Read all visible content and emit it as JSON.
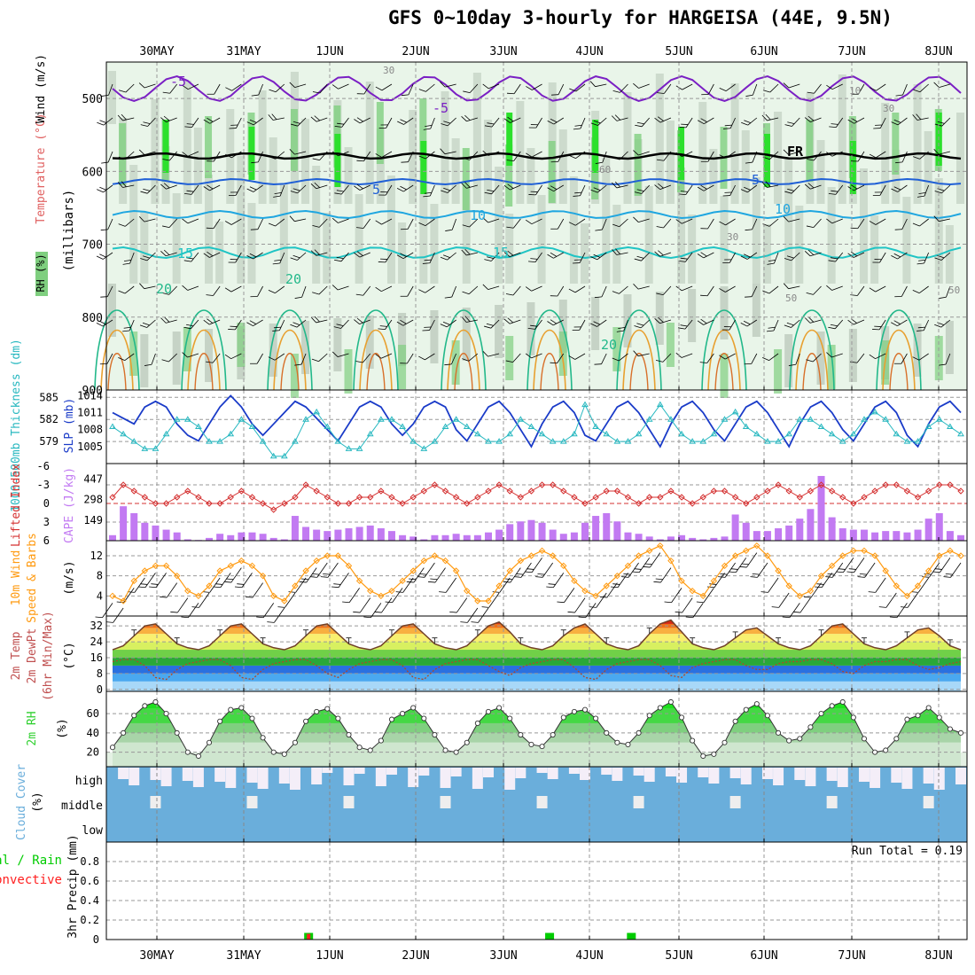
{
  "title": "GFS 0~10day 3-hourly for HARGEISA (44E, 9.5N)",
  "dates": [
    "30MAY",
    "31MAY",
    "1JUN",
    "2JUN",
    "3JUN",
    "4JUN",
    "5JUN",
    "6JUN",
    "7JUN",
    "8JUN"
  ],
  "panel_labels": {
    "p1_rh": "RH (%)",
    "p1_temp": "Temperature (°C)",
    "p1_wind": "Wind (m/s)",
    "p1_mb": "(millibars)",
    "p2_thick": "1000-500mb Thickness (dm)",
    "p2_slp": "SLP (mb)",
    "p3_li": "Lifted Index",
    "p3_cape": "CAPE (J/kg)",
    "p4_a": "10m Wind",
    "p4_b": "Speed & Barbs",
    "p4_units": "(m/s)",
    "p5_a": "2m Temp",
    "p5_b": "2m DewPt",
    "p5_c": "(6hr Min/Max)",
    "p5_units": "(°C)",
    "p6_a": "2m RH",
    "p6_units": "(%)",
    "p7_a": "Cloud Cover",
    "p7_units": "(%)",
    "p8_a": "Total / Rain",
    "p8_b": "Convective",
    "p8_c": "3hr Precip (mm)",
    "run_total": "Run Total = 0.19"
  },
  "colors": {
    "rh_light": "#e9f5e9",
    "rh_gray": "#b7c4b7",
    "rh_mid": "#7fcf7f",
    "rh_high": "#2ce02c",
    "temp_neg": "#7a1fc4",
    "temp_0": "#000000",
    "temp_5": "#1f5fd6",
    "temp_10": "#1fa6e0",
    "temp_15": "#1fc4c4",
    "temp_20": "#22b88a",
    "temp_25": "#e8a030",
    "temp_30": "#d8702a",
    "slp": "#1a3bc8",
    "thickness": "#28b8c0",
    "lifted_index": "#d43030",
    "cape": "#c27af2",
    "wind10": "#ff9a10",
    "rh2m": "#2fd02f",
    "cloud": "#6aaedb",
    "precip_total": "#00cc00",
    "precip_conv": "#ff2020"
  },
  "chart_data": [
    {
      "type": "heatmap",
      "panel": "pressure-level",
      "y_ticks": [
        500,
        600,
        700,
        800,
        900
      ],
      "ylim": [
        900,
        450
      ],
      "isotherm_labels": [
        "-5",
        "-5",
        "FR",
        "5",
        "5",
        "10",
        "10",
        "15",
        "15",
        "20",
        "20",
        "20",
        "10",
        "30",
        "30",
        "30",
        "60",
        "50",
        "50"
      ]
    },
    {
      "type": "line",
      "panel": "slp-thickness",
      "y_ticks_left": [
        579,
        582,
        585
      ],
      "y_ticks_right": [
        1005,
        1008,
        1011,
        1014
      ],
      "series": [
        {
          "name": "SLP (mb)",
          "values": [
            1011,
            1010,
            1009,
            1012,
            1013,
            1012,
            1009,
            1007,
            1006,
            1009,
            1012,
            1014,
            1012,
            1009,
            1007,
            1009,
            1011,
            1013,
            1012,
            1010,
            1008,
            1006,
            1009,
            1012,
            1013,
            1012,
            1009,
            1007,
            1009,
            1012,
            1013,
            1012,
            1008,
            1006,
            1009,
            1012,
            1013,
            1011,
            1008,
            1005,
            1009,
            1012,
            1013,
            1011,
            1007,
            1006,
            1009,
            1012,
            1013,
            1011,
            1008,
            1005,
            1009,
            1012,
            1013,
            1011,
            1008,
            1006,
            1009,
            1012,
            1013,
            1011,
            1008,
            1005,
            1009,
            1012,
            1013,
            1011,
            1008,
            1006,
            1009,
            1012,
            1013,
            1011,
            1007,
            1005,
            1009,
            1012,
            1013,
            1011
          ]
        },
        {
          "name": "1000-500mb Thickness (dm)",
          "values": [
            581,
            580,
            579,
            578,
            578,
            580,
            582,
            582,
            581,
            579,
            579,
            580,
            582,
            581,
            579,
            577,
            577,
            579,
            582,
            583,
            581,
            579,
            578,
            578,
            580,
            582,
            582,
            581,
            579,
            578,
            579,
            581,
            582,
            581,
            580,
            579,
            579,
            580,
            582,
            581,
            580,
            579,
            579,
            580,
            584,
            581,
            580,
            579,
            579,
            580,
            582,
            584,
            582,
            580,
            579,
            579,
            580,
            582,
            583,
            581,
            580,
            579,
            579,
            580,
            582,
            582,
            581,
            580,
            579,
            580,
            582,
            583,
            582,
            580,
            579,
            579,
            581,
            582,
            581,
            580
          ]
        }
      ]
    },
    {
      "type": "bar",
      "panel": "cape-li",
      "y_ticks_left": [
        -6,
        -3,
        0,
        3,
        6
      ],
      "y_ticks_right": [
        149,
        298,
        447
      ],
      "series": [
        {
          "name": "CAPE (J/kg)",
          "values": [
            40,
            250,
            200,
            130,
            110,
            80,
            60,
            10,
            5,
            20,
            50,
            40,
            60,
            60,
            50,
            20,
            10,
            180,
            100,
            80,
            70,
            80,
            90,
            100,
            110,
            90,
            70,
            40,
            30,
            10,
            40,
            40,
            50,
            40,
            40,
            60,
            80,
            120,
            140,
            150,
            130,
            80,
            50,
            60,
            130,
            180,
            200,
            140,
            60,
            50,
            30,
            10,
            30,
            40,
            20,
            10,
            20,
            30,
            190,
            130,
            70,
            70,
            90,
            110,
            160,
            230,
            470,
            170,
            90,
            80,
            80,
            60,
            70,
            70,
            60,
            80,
            160,
            200,
            70,
            40
          ]
        },
        {
          "name": "Lifted Index",
          "values": [
            -1,
            -3,
            -2,
            -1,
            0,
            0,
            -1,
            -2,
            -1,
            0,
            0,
            -1,
            -2,
            -1,
            0,
            1,
            0,
            -1,
            -3,
            -2,
            -1,
            0,
            0,
            -1,
            -1,
            -2,
            -1,
            0,
            -1,
            -2,
            -3,
            -2,
            -1,
            0,
            -1,
            -2,
            -3,
            -2,
            -1,
            -2,
            -3,
            -3,
            -2,
            -1,
            0,
            -1,
            -2,
            -2,
            -1,
            0,
            -1,
            -1,
            -2,
            -1,
            0,
            -1,
            -2,
            -2,
            -1,
            0,
            -1,
            -2,
            -3,
            -2,
            -1,
            -2,
            -3,
            -2,
            -1,
            0,
            -1,
            -2,
            -3,
            -3,
            -2,
            -1,
            -2,
            -3,
            -3,
            -2
          ]
        }
      ]
    },
    {
      "type": "line",
      "panel": "wind10m",
      "y_ticks": [
        4,
        8,
        12
      ],
      "series": [
        {
          "name": "10m Wind Speed",
          "values": [
            4,
            3,
            7,
            9,
            10,
            10,
            8,
            5,
            4,
            6,
            9,
            10,
            11,
            10,
            8,
            4,
            3,
            6,
            9,
            11,
            12,
            12,
            10,
            7,
            5,
            4,
            5,
            7,
            9,
            11,
            12,
            11,
            9,
            5,
            3,
            3,
            6,
            9,
            11,
            12,
            13,
            12,
            10,
            7,
            5,
            4,
            6,
            8,
            10,
            12,
            13,
            14,
            11,
            7,
            5,
            4,
            7,
            10,
            12,
            13,
            14,
            12,
            9,
            6,
            4,
            5,
            8,
            10,
            12,
            13,
            13,
            12,
            9,
            6,
            4,
            6,
            9,
            12,
            13,
            12
          ]
        }
      ]
    },
    {
      "type": "area",
      "panel": "temp2m",
      "y_ticks": [
        0,
        8,
        16,
        24,
        32
      ],
      "series": [
        {
          "name": "2m Temp",
          "values": [
            20,
            22,
            27,
            32,
            33,
            28,
            23,
            21,
            20,
            22,
            27,
            32,
            33,
            28,
            23,
            21,
            20,
            22,
            27,
            32,
            33,
            28,
            23,
            21,
            20,
            22,
            27,
            32,
            33,
            28,
            23,
            21,
            20,
            22,
            27,
            32,
            34,
            29,
            23,
            21,
            20,
            22,
            27,
            31,
            33,
            28,
            23,
            21,
            20,
            22,
            28,
            33,
            35,
            29,
            23,
            21,
            20,
            22,
            26,
            30,
            31,
            27,
            23,
            21,
            20,
            22,
            27,
            32,
            33,
            28,
            23,
            21,
            20,
            22,
            26,
            30,
            31,
            27,
            22,
            20
          ]
        },
        {
          "name": "2m DewPt",
          "values": [
            14,
            15,
            15,
            12,
            6,
            5,
            10,
            13,
            14,
            15,
            15,
            12,
            6,
            5,
            10,
            13,
            14,
            15,
            15,
            12,
            8,
            6,
            10,
            13,
            14,
            15,
            15,
            12,
            6,
            5,
            10,
            13,
            14,
            15,
            15,
            12,
            9,
            7,
            11,
            13,
            14,
            15,
            15,
            11,
            6,
            5,
            10,
            13,
            14,
            15,
            15,
            12,
            7,
            6,
            11,
            13,
            14,
            15,
            15,
            12,
            10,
            10,
            13,
            14,
            14,
            15,
            15,
            13,
            9,
            8,
            12,
            14,
            14,
            15,
            15,
            12,
            10,
            11,
            13,
            14
          ]
        }
      ]
    },
    {
      "type": "area",
      "panel": "rh2m",
      "y_ticks": [
        20,
        40,
        60
      ],
      "series": [
        {
          "name": "2m RH",
          "values": [
            25,
            40,
            58,
            68,
            72,
            60,
            40,
            20,
            16,
            30,
            52,
            64,
            66,
            55,
            35,
            20,
            18,
            30,
            52,
            62,
            65,
            55,
            38,
            25,
            22,
            32,
            54,
            60,
            66,
            55,
            38,
            22,
            20,
            30,
            50,
            62,
            66,
            55,
            38,
            28,
            26,
            38,
            56,
            62,
            64,
            55,
            40,
            30,
            28,
            40,
            58,
            66,
            72,
            56,
            32,
            16,
            18,
            30,
            52,
            64,
            70,
            58,
            40,
            32,
            34,
            46,
            60,
            68,
            72,
            56,
            34,
            20,
            22,
            34,
            54,
            58,
            66,
            56,
            44,
            40
          ]
        }
      ]
    },
    {
      "type": "table",
      "panel": "cloud-cover",
      "rows": [
        "high",
        "middle",
        "low"
      ]
    },
    {
      "type": "bar",
      "panel": "precip",
      "y_ticks": [
        0,
        0.2,
        0.4,
        0.6,
        0.8
      ],
      "ylim": [
        0,
        1
      ],
      "series": [
        {
          "name": "Total / Rain",
          "points": [
            {
              "t": 18.8,
              "v": 0.05
            },
            {
              "t": 41.2,
              "v": 0.05
            },
            {
              "t": 48.8,
              "v": 0.05
            }
          ]
        },
        {
          "name": "Convective",
          "points": [
            {
              "t": 18.8,
              "v": 0.04
            }
          ]
        }
      ],
      "run_total": 0.19
    }
  ]
}
